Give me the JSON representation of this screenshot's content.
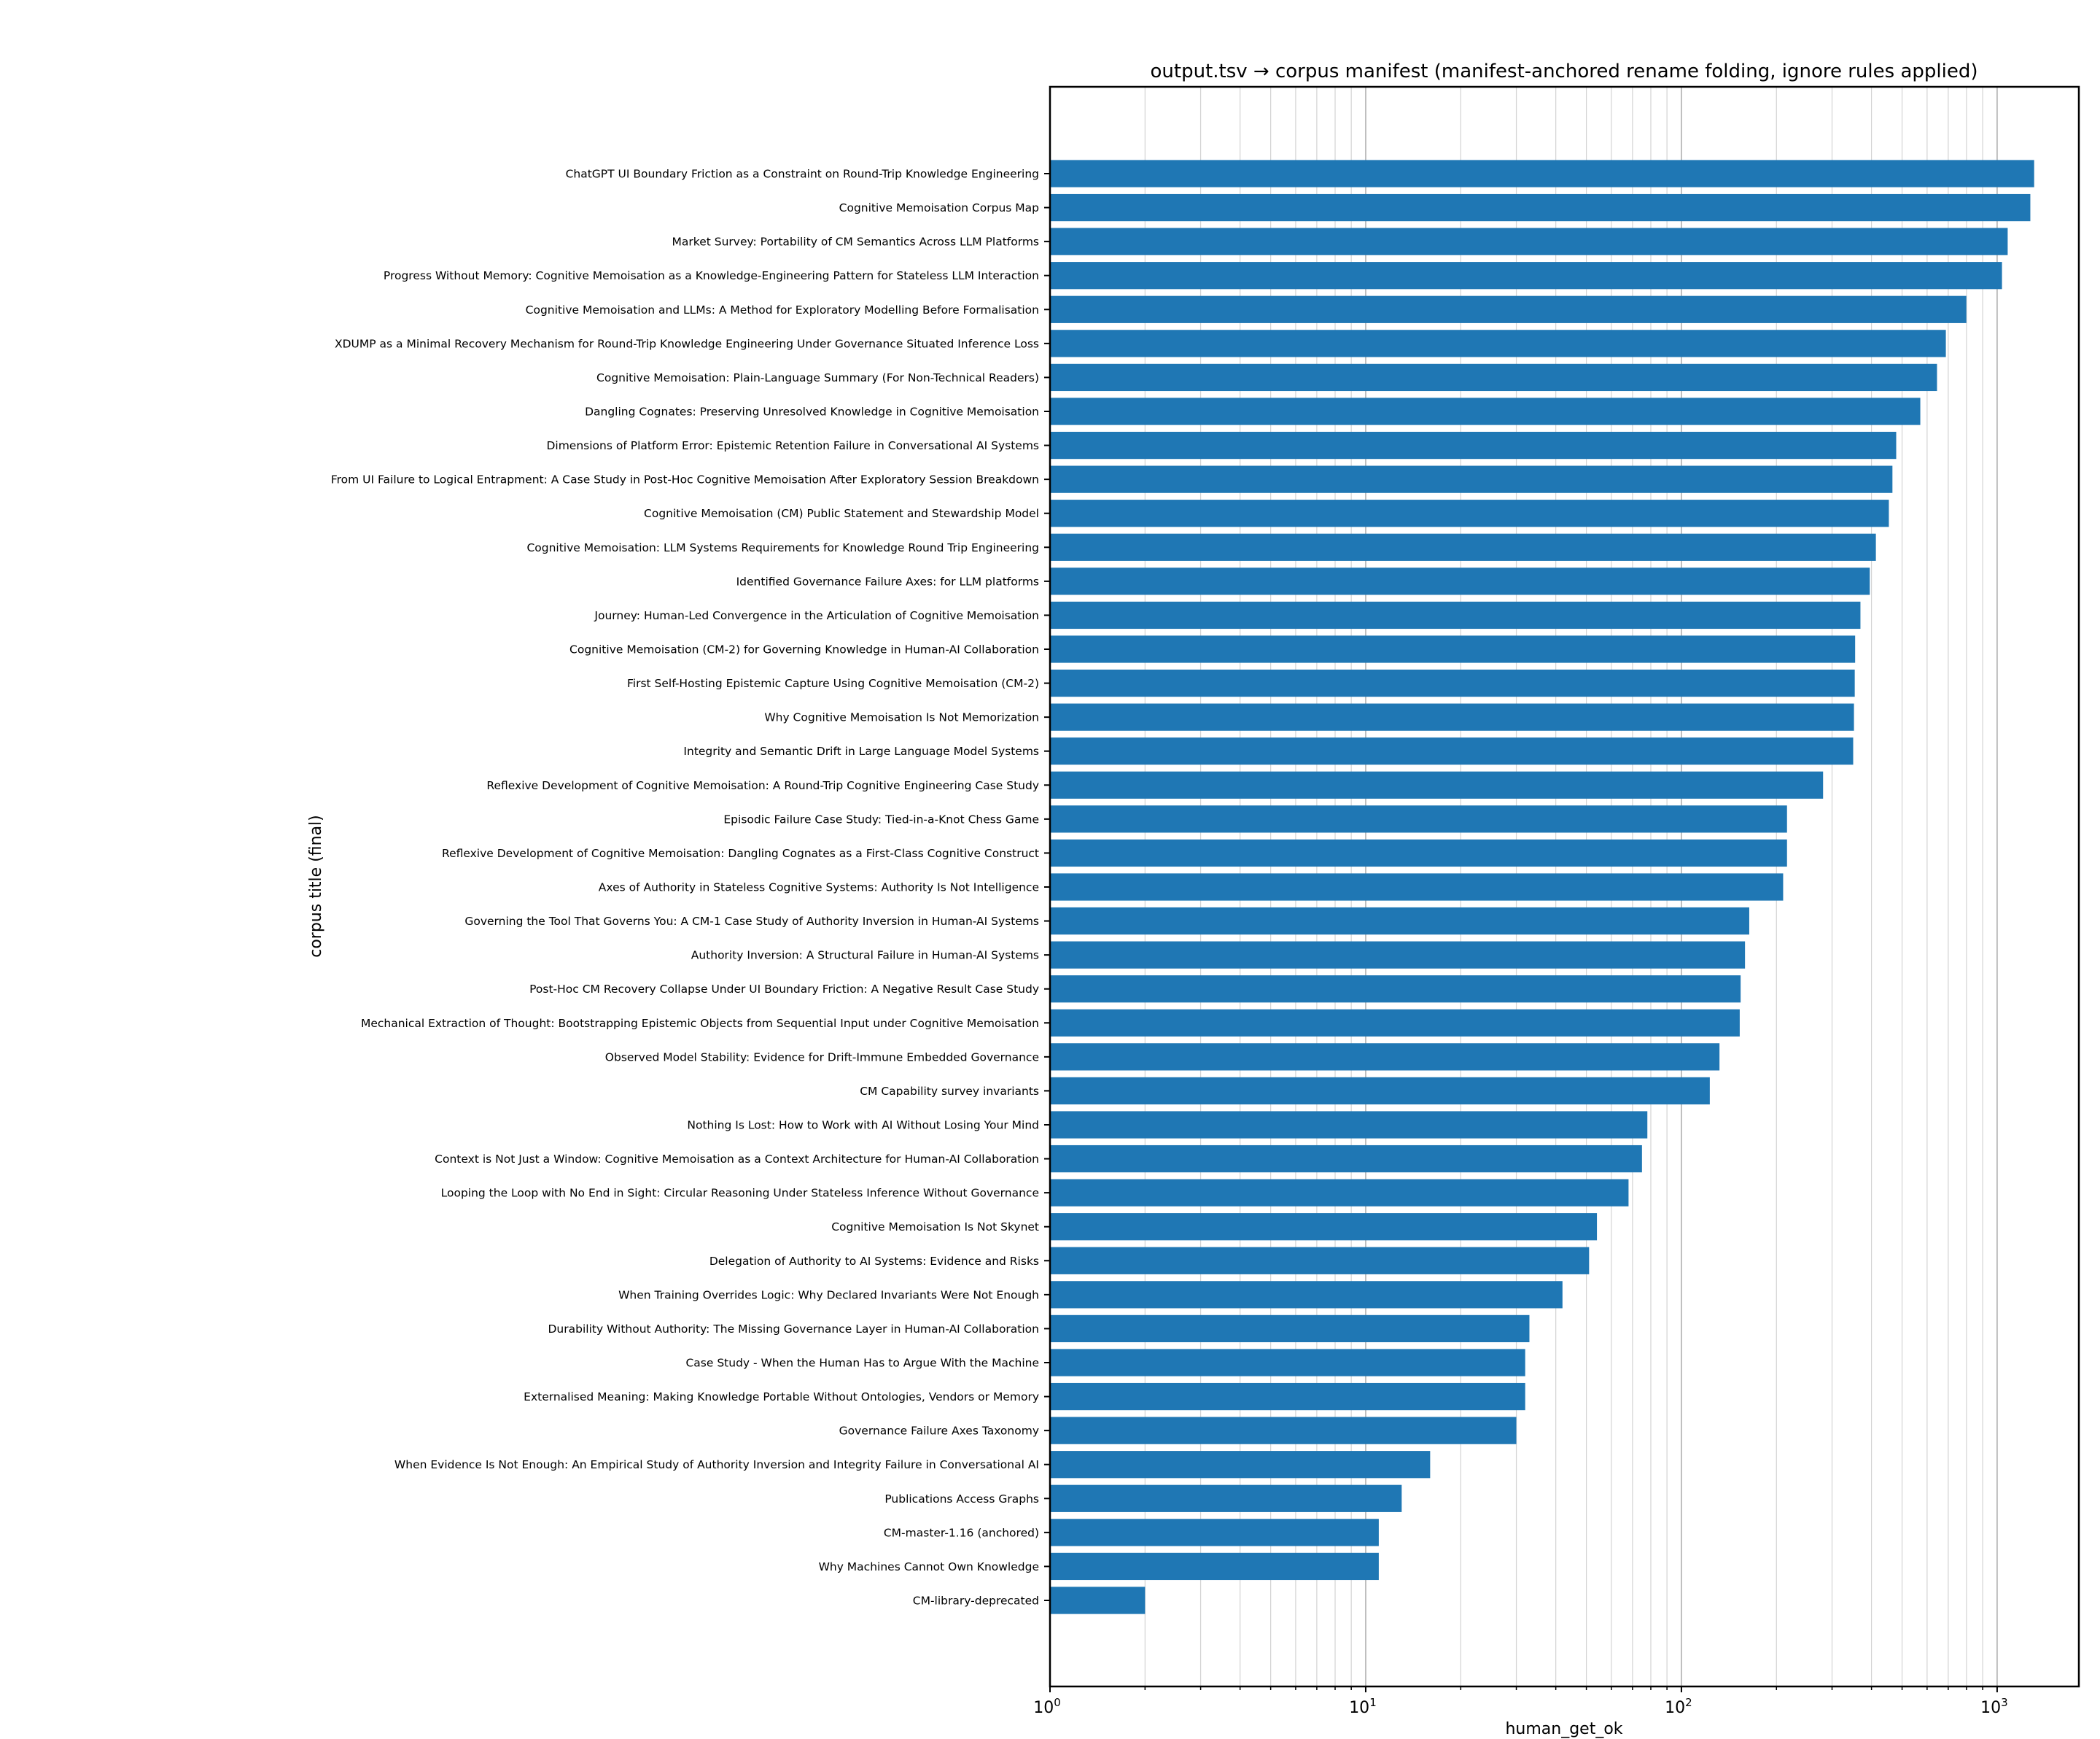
{
  "chart_data": {
    "type": "bar",
    "orientation": "horizontal",
    "title": "output.tsv → corpus manifest (manifest-anchored rename folding, ignore rules applied)",
    "xlabel": "human_get_ok",
    "ylabel": "corpus title (final)",
    "xscale": "log",
    "xlim": [
      1,
      1815
    ],
    "xticks": [
      {
        "base": "10",
        "exp": "0",
        "value": 1
      },
      {
        "base": "10",
        "exp": "1",
        "value": 10
      },
      {
        "base": "10",
        "exp": "2",
        "value": 100
      },
      {
        "base": "10",
        "exp": "3",
        "value": 1000
      }
    ],
    "grid": "x (major and minor)",
    "bar_color": "#1f77b4",
    "categories": [
      "ChatGPT UI Boundary Friction as a Constraint on Round-Trip Knowledge Engineering",
      "Cognitive Memoisation Corpus Map",
      "Market Survey: Portability of CM Semantics Across LLM Platforms",
      "Progress Without Memory: Cognitive Memoisation as a Knowledge-Engineering Pattern for Stateless LLM Interaction",
      "Cognitive Memoisation and LLMs: A Method for Exploratory Modelling Before Formalisation",
      "XDUMP as a Minimal Recovery Mechanism for Round-Trip Knowledge Engineering Under Governance Situated Inference Loss",
      "Cognitive Memoisation: Plain-Language Summary (For Non-Technical Readers)",
      "Dangling Cognates: Preserving Unresolved Knowledge in Cognitive Memoisation",
      "Dimensions of Platform Error: Epistemic Retention Failure in Conversational AI Systems",
      "From UI Failure to Logical Entrapment: A Case Study in Post-Hoc Cognitive Memoisation After Exploratory Session Breakdown",
      "Cognitive Memoisation (CM) Public Statement and Stewardship Model",
      "Cognitive Memoisation: LLM Systems Requirements for Knowledge Round Trip Engineering",
      "Identified Governance Failure Axes: for LLM platforms",
      "Journey: Human-Led Convergence in the Articulation of Cognitive Memoisation",
      "Cognitive Memoisation (CM-2) for Governing Knowledge in Human-AI Collaboration",
      "First Self-Hosting Epistemic Capture Using Cognitive Memoisation (CM-2)",
      "Why Cognitive Memoisation Is Not Memorization",
      "Integrity and Semantic Drift in Large Language Model Systems",
      "Reflexive Development of Cognitive Memoisation: A Round-Trip Cognitive Engineering Case Study",
      "Episodic Failure Case Study: Tied-in-a-Knot Chess Game",
      "Reflexive Development of Cognitive Memoisation: Dangling Cognates as a First-Class Cognitive Construct",
      "Axes of Authority in Stateless Cognitive Systems: Authority Is Not Intelligence",
      "Governing the Tool That Governs You: A CM-1 Case Study of Authority Inversion in Human-AI Systems",
      "Authority Inversion: A Structural Failure in Human-AI Systems",
      "Post-Hoc CM Recovery Collapse Under UI Boundary Friction: A Negative Result Case Study",
      "Mechanical Extraction of Thought: Bootstrapping Epistemic Objects from Sequential Input under Cognitive Memoisation",
      "Observed Model Stability: Evidence for Drift-Immune Embedded Governance",
      "CM Capability survey invariants",
      "Nothing Is Lost: How to Work with AI Without Losing Your Mind",
      "Context is Not Just a Window: Cognitive Memoisation as a Context Architecture for Human-AI Collaboration",
      "Looping the Loop with No End in Sight: Circular Reasoning Under Stateless Inference Without Governance",
      "Cognitive Memoisation Is Not Skynet",
      "Delegation of Authority to AI Systems: Evidence and Risks",
      "When Training Overrides Logic: Why Declared Invariants Were Not Enough",
      "Durability Without Authority: The Missing Governance Layer in Human-AI Collaboration",
      "Case Study - When the Human Has to Argue With the Machine",
      "Externalised Meaning: Making Knowledge Portable Without Ontologies, Vendors or Memory",
      "Governance Failure Axes Taxonomy",
      "When Evidence Is Not Enough: An Empirical Study of Authority Inversion and Integrity Failure in Conversational AI",
      "Publications Access Graphs",
      "CM-master-1.16 (anchored)",
      "Why Machines Cannot Own Knowledge",
      "CM-library-deprecated"
    ],
    "values": [
      1310,
      1274,
      1080,
      1036,
      799,
      688,
      645,
      571,
      479,
      466,
      454,
      413,
      395,
      369,
      355,
      354,
      352,
      350,
      281,
      216,
      216,
      210,
      164,
      159,
      154,
      153,
      132,
      123,
      78,
      75,
      68,
      54,
      51,
      42,
      33,
      32,
      32,
      30,
      16,
      13,
      11,
      11,
      2
    ]
  }
}
